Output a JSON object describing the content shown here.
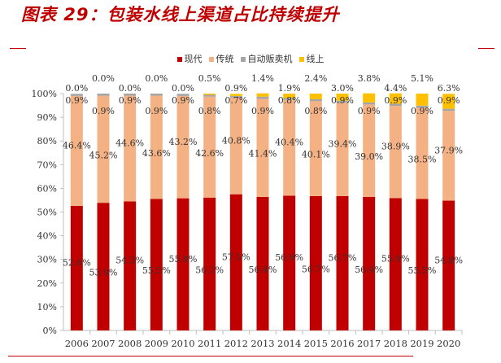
{
  "title": "图表 29：包装水线上渠道占比持续提升",
  "chart_data": {
    "type": "bar",
    "stacked": true,
    "title": "图表 29：包装水线上渠道占比持续提升",
    "categories": [
      "2006",
      "2007",
      "2008",
      "2009",
      "2010",
      "2011",
      "2012",
      "2013",
      "2014",
      "2015",
      "2016",
      "2017",
      "2018",
      "2019",
      "2020"
    ],
    "series": [
      {
        "name": "现代",
        "color": "#c00000",
        "values": [
          52.6,
          53.9,
          54.5,
          55.5,
          55.8,
          56.1,
          57.5,
          56.4,
          56.9,
          56.7,
          56.7,
          56.4,
          55.9,
          55.5,
          54.8
        ]
      },
      {
        "name": "传统",
        "color": "#f4b183",
        "values": [
          46.4,
          45.2,
          44.6,
          43.6,
          43.2,
          42.6,
          40.8,
          41.4,
          40.4,
          40.1,
          39.4,
          39.0,
          38.9,
          38.5,
          37.9
        ]
      },
      {
        "name": "自动贩卖机",
        "color": "#a5a5a5",
        "values": [
          0.9,
          0.9,
          0.9,
          0.9,
          0.9,
          0.8,
          0.7,
          0.9,
          0.8,
          0.8,
          0.9,
          0.9,
          0.9,
          0.9,
          0.9
        ]
      },
      {
        "name": "线上",
        "color": "#ffc000",
        "values": [
          0.0,
          0.0,
          0.0,
          0.0,
          0.0,
          0.5,
          0.9,
          1.4,
          1.9,
          2.4,
          3.0,
          3.8,
          4.4,
          5.1,
          6.3
        ]
      }
    ],
    "yticks": [
      "0%",
      "10%",
      "20%",
      "30%",
      "40%",
      "50%",
      "60%",
      "70%",
      "80%",
      "90%",
      "100%"
    ],
    "ylim": [
      0,
      100
    ],
    "legend": "top",
    "grid": false
  }
}
